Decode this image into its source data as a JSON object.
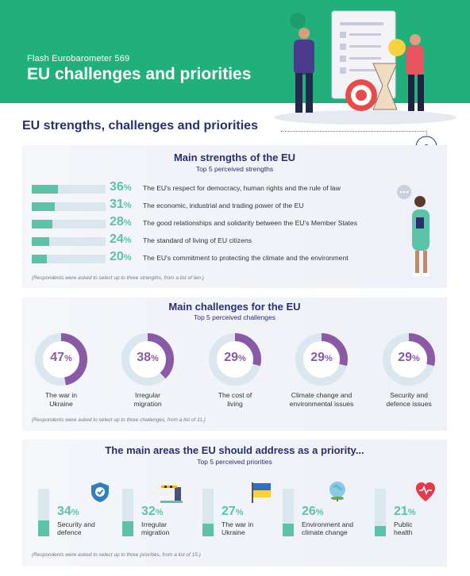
{
  "header": {
    "kicker": "Flash Eurobarometer 569",
    "title": "EU challenges and priorities"
  },
  "section_heading": "EU strengths, challenges and priorities",
  "colors": {
    "header_green": "#21b07c",
    "teal": "#5cc2a8",
    "purple": "#8a5aa6",
    "navy": "#2a2f6e",
    "track": "#dbe7ee"
  },
  "chart_data": [
    {
      "type": "bar",
      "title": "Main strengths of the EU",
      "subtitle": "Top 5 perceived strengths",
      "categories": [
        "The EU's respect for democracy, human rights and the rule of law",
        "The economic, industrial and trading power of the EU",
        "The good relationships and solidarity between the EU's Member States",
        "The standard of living of EU citizens",
        "The EU's commitment to protecting the climate and the environment"
      ],
      "values": [
        36,
        31,
        28,
        24,
        20
      ],
      "note": "(Respondents were asked to select up to three strengths, from a list of ten.)"
    },
    {
      "type": "pie",
      "title": "Main challenges for the EU",
      "subtitle": "Top 5 perceived challenges",
      "categories": [
        "The war in Ukraine",
        "Irregular migration",
        "The cost of living",
        "Climate change and environmental issues",
        "Security and defence issues"
      ],
      "labels": [
        [
          "The war in",
          "Ukraine"
        ],
        [
          "Irregular",
          "migration"
        ],
        [
          "The cost of",
          "living"
        ],
        [
          "Climate change and",
          "environmental issues"
        ],
        [
          "Security and",
          "defence issues"
        ]
      ],
      "values": [
        47,
        38,
        29,
        29,
        29
      ],
      "note": "(Respondents were asked to select up to three challenges, from a list of 11.)"
    },
    {
      "type": "bar",
      "title": "The main areas the EU should address as a priority...",
      "subtitle": "Top 5 perceived priorities",
      "categories": [
        "Security and defence",
        "Irregular migration",
        "The war in Ukraine",
        "Environment and climate change",
        "Public health"
      ],
      "labels": [
        [
          "Security and",
          "defence"
        ],
        [
          "Irregular",
          "migration"
        ],
        [
          "The war in",
          "Ukraine"
        ],
        [
          "Environment and",
          "climate change"
        ],
        [
          "Public",
          "health"
        ]
      ],
      "icons": [
        "shield-icon",
        "barrier-icon",
        "ukraine-flag-icon",
        "globe-plant-icon",
        "heart-icon"
      ],
      "values": [
        34,
        32,
        27,
        26,
        21
      ],
      "note": "(Respondents were asked to select up to three priorities, from a list of 15.)"
    }
  ]
}
